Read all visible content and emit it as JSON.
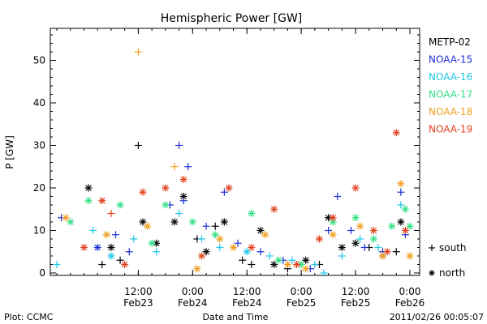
{
  "colors": {
    "metop02": "#000000",
    "noaa15": "#1c2fd6",
    "noaa16": "#1ec8e8",
    "noaa17": "#33e085",
    "noaa18": "#f0a020",
    "noaa19": "#e0401c"
  },
  "footer": {
    "plot_source": "Plot: CCMC",
    "timestamp": "2011/02/26 00:05:07"
  },
  "chart_data": {
    "type": "scatter",
    "title": "Hemispheric Power [GW]",
    "ylabel": "P [GW]",
    "xlabel": "Date and Time",
    "ylim": [
      0,
      57
    ],
    "yticks": [
      0,
      10,
      20,
      30,
      40,
      50
    ],
    "xlim": [
      "2011-02-22 18:00",
      "2011-02-26 00:00"
    ],
    "xticks": [
      {
        "t": "2011-02-23 12:00",
        "time": "12:00",
        "date": "Feb23"
      },
      {
        "t": "2011-02-24 00:00",
        "time": "0:00",
        "date": "Feb24"
      },
      {
        "t": "2011-02-24 12:00",
        "time": "12:00",
        "date": "Feb24"
      },
      {
        "t": "2011-02-25 00:00",
        "time": "0:00",
        "date": "Feb25"
      },
      {
        "t": "2011-02-25 12:00",
        "time": "12:00",
        "date": "Feb25"
      },
      {
        "t": "2011-02-26 00:00",
        "time": "0:00",
        "date": "Feb26"
      }
    ],
    "legend_position": "right",
    "hemisphere_legend": [
      {
        "symbol": "+",
        "label": "south"
      },
      {
        "symbol": "*",
        "label": "north"
      }
    ],
    "series": [
      {
        "name": "METP-02",
        "color": "#000000",
        "points": [
          [
            "2011-02-23 01:00",
            20,
            "n"
          ],
          [
            "2011-02-23 04:00",
            2,
            "s"
          ],
          [
            "2011-02-23 06:00",
            6,
            "n"
          ],
          [
            "2011-02-23 08:00",
            3,
            "s"
          ],
          [
            "2011-02-23 12:00",
            30,
            "s"
          ],
          [
            "2011-02-23 13:00",
            12,
            "n"
          ],
          [
            "2011-02-23 16:00",
            7,
            "n"
          ],
          [
            "2011-02-23 20:00",
            12,
            "n"
          ],
          [
            "2011-02-23 22:00",
            18,
            "n"
          ],
          [
            "2011-02-24 01:00",
            8,
            "s"
          ],
          [
            "2011-02-24 03:00",
            5,
            "n"
          ],
          [
            "2011-02-24 05:00",
            11,
            "s"
          ],
          [
            "2011-02-24 07:00",
            12,
            "n"
          ],
          [
            "2011-02-24 11:00",
            3,
            "s"
          ],
          [
            "2011-02-24 13:00",
            2,
            "s"
          ],
          [
            "2011-02-24 15:00",
            10,
            "n"
          ],
          [
            "2011-02-24 18:00",
            2,
            "n"
          ],
          [
            "2011-02-24 21:00",
            1,
            "s"
          ],
          [
            "2011-02-25 01:00",
            3,
            "n"
          ],
          [
            "2011-02-25 04:00",
            2,
            "s"
          ],
          [
            "2011-02-25 06:00",
            13,
            "n"
          ],
          [
            "2011-02-25 09:00",
            6,
            "n"
          ],
          [
            "2011-02-25 12:00",
            7,
            "n"
          ],
          [
            "2011-02-25 15:00",
            6,
            "s"
          ],
          [
            "2011-02-25 18:00",
            4,
            "n"
          ],
          [
            "2011-02-25 21:00",
            5,
            "s"
          ],
          [
            "2011-02-25 22:00",
            12,
            "n"
          ]
        ]
      },
      {
        "name": "NOAA-15",
        "color": "#1c2fd6",
        "points": [
          [
            "2011-02-22 19:00",
            13,
            "s"
          ],
          [
            "2011-02-23 03:00",
            6,
            "n"
          ],
          [
            "2011-02-23 07:00",
            9,
            "s"
          ],
          [
            "2011-02-23 10:00",
            5,
            "s"
          ],
          [
            "2011-02-23 19:00",
            16,
            "s"
          ],
          [
            "2011-02-23 21:00",
            30,
            "s"
          ],
          [
            "2011-02-23 22:00",
            17,
            "s"
          ],
          [
            "2011-02-23 23:00",
            25,
            "s"
          ],
          [
            "2011-02-24 03:00",
            11,
            "s"
          ],
          [
            "2011-02-24 07:00",
            19,
            "s"
          ],
          [
            "2011-02-24 10:00",
            7,
            "s"
          ],
          [
            "2011-02-24 15:00",
            5,
            "s"
          ],
          [
            "2011-02-24 20:00",
            3,
            "s"
          ],
          [
            "2011-02-25 02:00",
            1,
            "s"
          ],
          [
            "2011-02-25 06:00",
            10,
            "s"
          ],
          [
            "2011-02-25 08:00",
            18,
            "s"
          ],
          [
            "2011-02-25 11:00",
            10,
            "s"
          ],
          [
            "2011-02-25 14:00",
            6,
            "s"
          ],
          [
            "2011-02-25 18:00",
            5,
            "s"
          ],
          [
            "2011-02-25 22:00",
            19,
            "s"
          ],
          [
            "2011-02-25 23:00",
            9,
            "s"
          ]
        ]
      },
      {
        "name": "NOAA-16",
        "color": "#1ec8e8",
        "points": [
          [
            "2011-02-22 18:00",
            2,
            "s"
          ],
          [
            "2011-02-23 02:00",
            10,
            "s"
          ],
          [
            "2011-02-23 06:00",
            4,
            "n"
          ],
          [
            "2011-02-23 11:00",
            8,
            "s"
          ],
          [
            "2011-02-23 16:00",
            5,
            "s"
          ],
          [
            "2011-02-23 21:00",
            14,
            "s"
          ],
          [
            "2011-02-24 02:00",
            8,
            "s"
          ],
          [
            "2011-02-24 06:00",
            6,
            "s"
          ],
          [
            "2011-02-24 12:00",
            5,
            "n"
          ],
          [
            "2011-02-24 17:00",
            4,
            "s"
          ],
          [
            "2011-02-24 22:00",
            3,
            "s"
          ],
          [
            "2011-02-25 03:00",
            2,
            "s"
          ],
          [
            "2011-02-25 05:00",
            0,
            "s"
          ],
          [
            "2011-02-25 09:00",
            4,
            "s"
          ],
          [
            "2011-02-25 13:00",
            8,
            "s"
          ],
          [
            "2011-02-25 17:00",
            6,
            "s"
          ],
          [
            "2011-02-25 22:00",
            16,
            "s"
          ]
        ]
      },
      {
        "name": "NOAA-17",
        "color": "#33e085",
        "points": [
          [
            "2011-02-22 21:00",
            12,
            "n"
          ],
          [
            "2011-02-23 01:00",
            17,
            "n"
          ],
          [
            "2011-02-23 08:00",
            16,
            "n"
          ],
          [
            "2011-02-23 15:00",
            7,
            "n"
          ],
          [
            "2011-02-23 18:00",
            16,
            "n"
          ],
          [
            "2011-02-24 00:00",
            12,
            "n"
          ],
          [
            "2011-02-24 05:00",
            9,
            "n"
          ],
          [
            "2011-02-24 13:00",
            14,
            "n"
          ],
          [
            "2011-02-24 19:00",
            3,
            "n"
          ],
          [
            "2011-02-25 00:00",
            2,
            "n"
          ],
          [
            "2011-02-25 07:00",
            12,
            "n"
          ],
          [
            "2011-02-25 12:00",
            13,
            "n"
          ],
          [
            "2011-02-25 16:00",
            8,
            "n"
          ],
          [
            "2011-02-25 20:00",
            11,
            "n"
          ],
          [
            "2011-02-25 23:00",
            15,
            "n"
          ],
          [
            "2011-02-26 00:00",
            11,
            "n"
          ]
        ]
      },
      {
        "name": "NOAA-18",
        "color": "#f0a020",
        "points": [
          [
            "2011-02-22 20:00",
            13,
            "n"
          ],
          [
            "2011-02-23 05:00",
            9,
            "n"
          ],
          [
            "2011-02-23 12:00",
            52,
            "s"
          ],
          [
            "2011-02-23 14:00",
            11,
            "n"
          ],
          [
            "2011-02-23 20:00",
            25,
            "s"
          ],
          [
            "2011-02-24 01:00",
            1,
            "n"
          ],
          [
            "2011-02-24 06:00",
            8,
            "n"
          ],
          [
            "2011-02-24 09:00",
            6,
            "n"
          ],
          [
            "2011-02-24 16:00",
            9,
            "n"
          ],
          [
            "2011-02-24 21:00",
            2,
            "n"
          ],
          [
            "2011-02-25 01:00",
            1,
            "n"
          ],
          [
            "2011-02-25 07:00",
            9,
            "n"
          ],
          [
            "2011-02-25 13:00",
            11,
            "n"
          ],
          [
            "2011-02-25 18:00",
            4,
            "n"
          ],
          [
            "2011-02-25 22:00",
            21,
            "n"
          ],
          [
            "2011-02-26 00:00",
            4,
            "n"
          ]
        ]
      },
      {
        "name": "NOAA-19",
        "color": "#e0401c",
        "points": [
          [
            "2011-02-23 00:00",
            6,
            "n"
          ],
          [
            "2011-02-23 04:00",
            17,
            "n"
          ],
          [
            "2011-02-23 06:00",
            14,
            "s"
          ],
          [
            "2011-02-23 09:00",
            2,
            "n"
          ],
          [
            "2011-02-23 13:00",
            19,
            "n"
          ],
          [
            "2011-02-23 18:00",
            20,
            "n"
          ],
          [
            "2011-02-23 22:00",
            22,
            "n"
          ],
          [
            "2011-02-24 02:00",
            4,
            "n"
          ],
          [
            "2011-02-24 08:00",
            20,
            "n"
          ],
          [
            "2011-02-24 13:00",
            6,
            "n"
          ],
          [
            "2011-02-24 18:00",
            15,
            "n"
          ],
          [
            "2011-02-24 23:00",
            2,
            "n"
          ],
          [
            "2011-02-25 04:00",
            8,
            "n"
          ],
          [
            "2011-02-25 07:00",
            13,
            "n"
          ],
          [
            "2011-02-25 12:00",
            20,
            "n"
          ],
          [
            "2011-02-25 16:00",
            10,
            "n"
          ],
          [
            "2011-02-25 19:00",
            5,
            "n"
          ],
          [
            "2011-02-25 21:00",
            33,
            "n"
          ],
          [
            "2011-02-25 23:00",
            10,
            "n"
          ]
        ]
      }
    ]
  }
}
